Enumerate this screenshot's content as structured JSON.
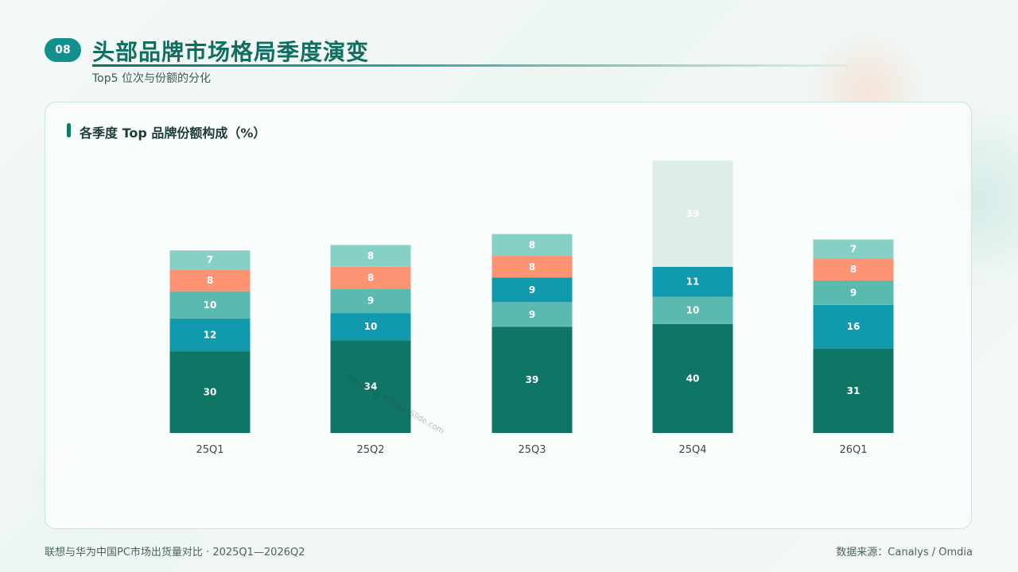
{
  "header": {
    "badge": "08",
    "title": "头部品牌市场格局季度演变",
    "subtitle": "Top5 位次与份额的分化"
  },
  "card": {
    "title": "各季度 Top 品牌份额构成（%）"
  },
  "watermark": "Report @ 41Data-Slide.com",
  "footer": {
    "left": "联想与华为中国PC市场出货量对比 · 2025Q1—2026Q2",
    "right": "数据来源：Canalys / Omdia"
  },
  "colors": {
    "rank1": "#0f7565",
    "rank2": "#1199ad",
    "rank3": "#5bbab0",
    "rank4": "#fc9473",
    "rank5": "#87d0c6",
    "other": "#deecea"
  },
  "chart_data": {
    "type": "bar",
    "stacked": true,
    "categories": [
      "25Q1",
      "25Q2",
      "25Q3",
      "25Q4",
      "26Q1"
    ],
    "stacks": [
      [
        30,
        12,
        10,
        8,
        7
      ],
      [
        34,
        10,
        9,
        8,
        8
      ],
      [
        39,
        9,
        9,
        8,
        8
      ],
      [
        40,
        10,
        11,
        39
      ],
      [
        31,
        16,
        9,
        8,
        7
      ]
    ],
    "stack_colors": [
      [
        "rank1",
        "rank2",
        "rank3",
        "rank4",
        "rank5"
      ],
      [
        "rank1",
        "rank2",
        "rank3",
        "rank4",
        "rank5"
      ],
      [
        "rank1",
        "rank3",
        "rank2",
        "rank4",
        "rank5"
      ],
      [
        "rank1",
        "rank3",
        "rank2",
        "other"
      ],
      [
        "rank1",
        "rank2",
        "rank3",
        "rank4",
        "rank5"
      ]
    ],
    "title": "各季度 Top 品牌份额构成（%）",
    "xlabel": "",
    "ylabel": "",
    "ylim": [
      0,
      100
    ],
    "grid": false
  }
}
